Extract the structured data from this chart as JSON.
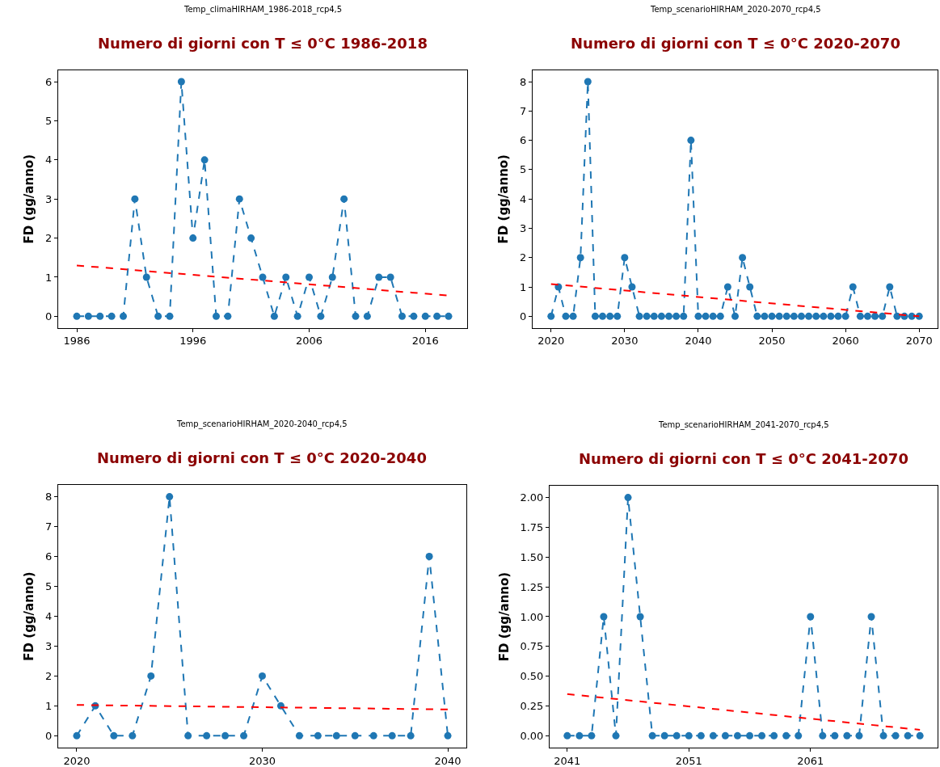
{
  "chart_data": [
    {
      "type": "line",
      "subtitle": "Temp_climaHIRHAM_1986-2018_rcp4,5",
      "title": "Numero di giorni con T ≤ 0°C 1986-2018",
      "ylabel": "FD (gg/anno)",
      "x": [
        1986,
        1987,
        1988,
        1989,
        1990,
        1991,
        1992,
        1993,
        1994,
        1995,
        1996,
        1997,
        1998,
        1999,
        2000,
        2001,
        2002,
        2003,
        2004,
        2005,
        2006,
        2007,
        2008,
        2009,
        2010,
        2011,
        2012,
        2013,
        2014,
        2015,
        2016,
        2017,
        2018
      ],
      "series": [
        {
          "color": "#1f77b4",
          "marker": "circle",
          "line_style": "dashed",
          "values": [
            0,
            0,
            0,
            0,
            0,
            3,
            1,
            0,
            0,
            6,
            2,
            4,
            0,
            0,
            3,
            2,
            1,
            0,
            1,
            0,
            1,
            0,
            1,
            3,
            0,
            0,
            1,
            1,
            0,
            0,
            0,
            0,
            0
          ]
        },
        {
          "type": "line",
          "color": "#ff0000",
          "marker": "none",
          "line_style": "dashed",
          "x": [
            1986,
            2018
          ],
          "values": [
            1.3,
            0.53
          ]
        }
      ],
      "xlim": [
        1984.4,
        2019.6
      ],
      "ylim": [
        -0.3,
        6.3
      ],
      "xticks": [
        1986,
        1996,
        2006,
        2016
      ],
      "yticks": [
        0,
        1,
        2,
        3,
        4,
        5,
        6
      ],
      "grid": false
    },
    {
      "type": "line",
      "subtitle": "Temp_scenarioHIRHAM_2020-2070_rcp4,5",
      "title": "Numero di giorni con T ≤ 0°C 2020-2070",
      "ylabel": "FD (gg/anno)",
      "x": [
        2020,
        2021,
        2022,
        2023,
        2024,
        2025,
        2026,
        2027,
        2028,
        2029,
        2030,
        2031,
        2032,
        2033,
        2034,
        2035,
        2036,
        2037,
        2038,
        2039,
        2040,
        2041,
        2042,
        2043,
        2044,
        2045,
        2046,
        2047,
        2048,
        2049,
        2050,
        2051,
        2052,
        2053,
        2054,
        2055,
        2056,
        2057,
        2058,
        2059,
        2060,
        2061,
        2062,
        2063,
        2064,
        2065,
        2066,
        2067,
        2068,
        2069,
        2070
      ],
      "series": [
        {
          "color": "#1f77b4",
          "marker": "circle",
          "line_style": "dashed",
          "values": [
            0,
            1,
            0,
            0,
            2,
            8,
            0,
            0,
            0,
            0,
            2,
            1,
            0,
            0,
            0,
            0,
            0,
            0,
            0,
            6,
            0,
            0,
            0,
            0,
            1,
            0,
            2,
            1,
            0,
            0,
            0,
            0,
            0,
            0,
            0,
            0,
            0,
            0,
            0,
            0,
            0,
            1,
            0,
            0,
            0,
            0,
            1,
            0,
            0,
            0,
            0
          ]
        },
        {
          "type": "line",
          "color": "#ff0000",
          "marker": "none",
          "line_style": "dashed",
          "x": [
            2020,
            2070
          ],
          "values": [
            1.1,
            0.0
          ]
        }
      ],
      "xlim": [
        2017.5,
        2072.5
      ],
      "ylim": [
        -0.4,
        8.4
      ],
      "xticks": [
        2020,
        2030,
        2040,
        2050,
        2060,
        2070
      ],
      "yticks": [
        0,
        1,
        2,
        3,
        4,
        5,
        6,
        7,
        8
      ],
      "grid": false
    },
    {
      "type": "line",
      "subtitle": "Temp_scenarioHIRHAM_2020-2040_rcp4,5",
      "title": "Numero di giorni con T ≤ 0°C 2020-2040",
      "ylabel": "FD (gg/anno)",
      "x": [
        2020,
        2021,
        2022,
        2023,
        2024,
        2025,
        2026,
        2027,
        2028,
        2029,
        2030,
        2031,
        2032,
        2033,
        2034,
        2035,
        2036,
        2037,
        2038,
        2039,
        2040
      ],
      "series": [
        {
          "color": "#1f77b4",
          "marker": "circle",
          "line_style": "dashed",
          "values": [
            0,
            1,
            0,
            0,
            2,
            8,
            0,
            0,
            0,
            0,
            2,
            1,
            0,
            0,
            0,
            0,
            0,
            0,
            0,
            6,
            0
          ]
        },
        {
          "type": "line",
          "color": "#ff0000",
          "marker": "none",
          "line_style": "dashed",
          "x": [
            2020,
            2040
          ],
          "values": [
            1.03,
            0.88
          ]
        }
      ],
      "xlim": [
        2019,
        2041
      ],
      "ylim": [
        -0.4,
        8.4
      ],
      "xticks": [
        2020,
        2030,
        2040
      ],
      "yticks": [
        0,
        1,
        2,
        3,
        4,
        5,
        6,
        7,
        8
      ],
      "grid": false
    },
    {
      "type": "line",
      "subtitle": "Temp_scenarioHIRHAM_2041-2070_rcp4,5",
      "title": "Numero di giorni con T ≤ 0°C 2041-2070",
      "ylabel": "FD (gg/anno)",
      "x": [
        2041,
        2042,
        2043,
        2044,
        2045,
        2046,
        2047,
        2048,
        2049,
        2050,
        2051,
        2052,
        2053,
        2054,
        2055,
        2056,
        2057,
        2058,
        2059,
        2060,
        2061,
        2062,
        2063,
        2064,
        2065,
        2066,
        2067,
        2068,
        2069,
        2070
      ],
      "series": [
        {
          "color": "#1f77b4",
          "marker": "circle",
          "line_style": "dashed",
          "values": [
            0,
            0,
            0,
            1,
            0,
            2,
            1,
            0,
            0,
            0,
            0,
            0,
            0,
            0,
            0,
            0,
            0,
            0,
            0,
            0,
            1,
            0,
            0,
            0,
            0,
            1,
            0,
            0,
            0,
            0
          ]
        },
        {
          "type": "line",
          "color": "#ff0000",
          "marker": "none",
          "line_style": "dashed",
          "x": [
            2041,
            2070
          ],
          "values": [
            0.35,
            0.05
          ]
        }
      ],
      "xlim": [
        2039.55,
        2071.45
      ],
      "ylim": [
        -0.1,
        2.1
      ],
      "xticks": [
        2041,
        2051,
        2061
      ],
      "yticks": [
        {
          "value": 0,
          "label": "0.00"
        },
        {
          "value": 0.25,
          "label": "0.25"
        },
        {
          "value": 0.5,
          "label": "0.50"
        },
        {
          "value": 0.75,
          "label": "0.75"
        },
        {
          "value": 1,
          "label": "1.00"
        },
        {
          "value": 1.25,
          "label": "1.25"
        },
        {
          "value": 1.5,
          "label": "1.50"
        },
        {
          "value": 1.75,
          "label": "1.75"
        },
        {
          "value": 2,
          "label": "2.00"
        }
      ],
      "grid": false
    }
  ]
}
